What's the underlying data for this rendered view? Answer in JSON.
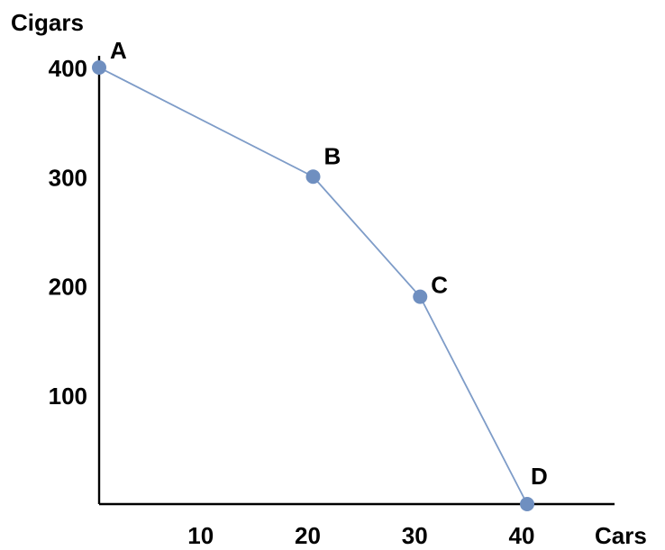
{
  "chart_data": {
    "type": "line",
    "title": "",
    "xlabel": "Cars",
    "ylabel": "Cigars",
    "x_ticks": [
      10,
      20,
      30,
      40
    ],
    "y_ticks": [
      100,
      200,
      300,
      400
    ],
    "xlim": [
      0,
      45
    ],
    "ylim": [
      0,
      430
    ],
    "grid": false,
    "series": [
      {
        "points": [
          {
            "label": "A",
            "x": 0,
            "y": 400
          },
          {
            "label": "B",
            "x": 20,
            "y": 300
          },
          {
            "label": "C",
            "x": 30,
            "y": 190
          },
          {
            "label": "D",
            "x": 40,
            "y": 0
          }
        ]
      }
    ],
    "colors": {
      "line": "#7e9cc8",
      "marker": "#6f8fc0"
    }
  }
}
